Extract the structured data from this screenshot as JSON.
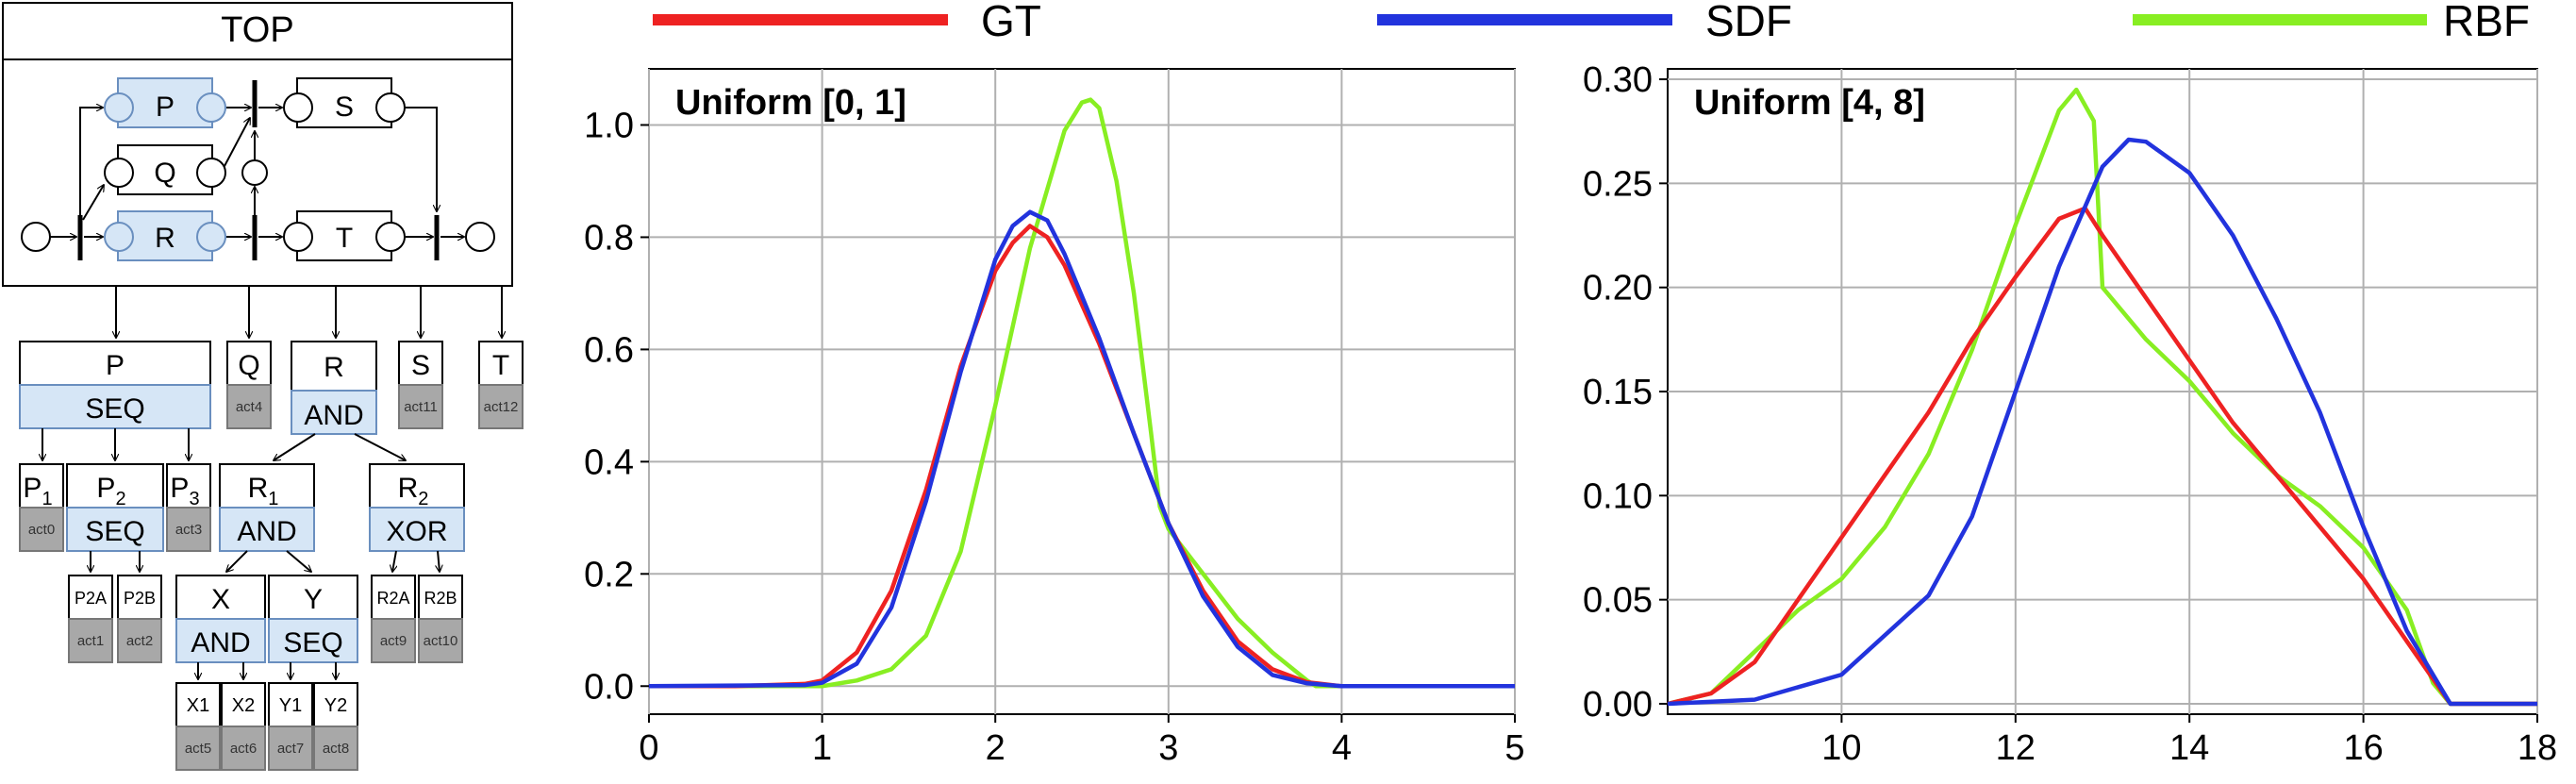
{
  "diagram": {
    "top_title": "TOP",
    "top_boxes": {
      "P": "P",
      "Q": "Q",
      "R": "R",
      "S": "S",
      "T": "T"
    },
    "tree": {
      "P": {
        "label": "P",
        "op": "SEQ"
      },
      "Q": {
        "label": "Q",
        "act": "act4"
      },
      "R": {
        "label": "R",
        "op": "AND"
      },
      "S": {
        "label": "S",
        "act": "act11"
      },
      "T": {
        "label": "T",
        "act": "act12"
      },
      "P1": {
        "base": "P",
        "sub": "1",
        "act": "act0"
      },
      "P2": {
        "base": "P",
        "sub": "2",
        "op": "SEQ"
      },
      "P3": {
        "base": "P",
        "sub": "3",
        "act": "act3"
      },
      "R1": {
        "base": "R",
        "sub": "1",
        "op": "AND"
      },
      "R2": {
        "base": "R",
        "sub": "2",
        "op": "XOR"
      },
      "P2A": {
        "label": "P2A",
        "act": "act1"
      },
      "P2B": {
        "label": "P2B",
        "act": "act2"
      },
      "X": {
        "label": "X",
        "op": "AND"
      },
      "Y": {
        "label": "Y",
        "op": "SEQ"
      },
      "R2A": {
        "label": "R2A",
        "act": "act9"
      },
      "R2B": {
        "label": "R2B",
        "act": "act10"
      },
      "X1": {
        "label": "X1",
        "act": "act5"
      },
      "X2": {
        "label": "X2",
        "act": "act6"
      },
      "Y1": {
        "label": "Y1",
        "act": "act7"
      },
      "Y2": {
        "label": "Y2",
        "act": "act8"
      }
    }
  },
  "legend": [
    {
      "name": "GT",
      "color": "#ee2222"
    },
    {
      "name": "SDF",
      "color": "#2233dd"
    },
    {
      "name": "RBF",
      "color": "#88ee22"
    }
  ],
  "chart_data": [
    {
      "type": "line",
      "title": "Uniform [0, 1]",
      "xlim": [
        0,
        5
      ],
      "ylim": [
        -0.05,
        1.1
      ],
      "xticks": [
        0,
        1,
        2,
        3,
        4,
        5
      ],
      "yticks": [
        0.0,
        0.2,
        0.4,
        0.6,
        0.8,
        1.0
      ],
      "xtick_labels": [
        "0",
        "1",
        "2",
        "3",
        "4",
        "5"
      ],
      "ytick_labels": [
        "0.0",
        "0.2",
        "0.4",
        "0.6",
        "0.8",
        "1.0"
      ],
      "grid": true,
      "series": [
        {
          "name": "GT",
          "x": [
            0,
            0.5,
            0.9,
            1.0,
            1.2,
            1.4,
            1.6,
            1.8,
            2.0,
            2.1,
            2.2,
            2.3,
            2.4,
            2.6,
            2.8,
            3.0,
            3.2,
            3.4,
            3.6,
            3.8,
            4.0,
            5.0
          ],
          "y": [
            0,
            0,
            0.004,
            0.01,
            0.06,
            0.17,
            0.35,
            0.57,
            0.74,
            0.79,
            0.82,
            0.8,
            0.75,
            0.61,
            0.45,
            0.29,
            0.17,
            0.08,
            0.03,
            0.007,
            0,
            0
          ]
        },
        {
          "name": "SDF",
          "x": [
            0,
            0.9,
            1.0,
            1.2,
            1.4,
            1.6,
            1.8,
            2.0,
            2.1,
            2.2,
            2.3,
            2.4,
            2.6,
            2.8,
            3.0,
            3.2,
            3.4,
            3.6,
            3.8,
            4.0,
            5.0
          ],
          "y": [
            0,
            0.002,
            0.006,
            0.04,
            0.14,
            0.33,
            0.56,
            0.76,
            0.82,
            0.845,
            0.83,
            0.77,
            0.62,
            0.45,
            0.29,
            0.16,
            0.07,
            0.02,
            0.005,
            0,
            0
          ]
        },
        {
          "name": "RBF",
          "x": [
            0,
            1.0,
            1.2,
            1.4,
            1.6,
            1.8,
            2.0,
            2.2,
            2.4,
            2.5,
            2.55,
            2.6,
            2.7,
            2.8,
            2.9,
            2.95,
            3.0,
            3.2,
            3.4,
            3.6,
            3.8,
            3.85,
            5.0
          ],
          "y": [
            0,
            0,
            0.01,
            0.03,
            0.09,
            0.24,
            0.5,
            0.78,
            0.99,
            1.04,
            1.045,
            1.03,
            0.9,
            0.7,
            0.45,
            0.32,
            0.28,
            0.2,
            0.12,
            0.06,
            0.01,
            0,
            0
          ]
        }
      ]
    },
    {
      "type": "line",
      "title": "Uniform [4, 8]",
      "xlim": [
        8,
        18
      ],
      "ylim": [
        -0.005,
        0.305
      ],
      "xticks": [
        10,
        12,
        14,
        16,
        18
      ],
      "yticks": [
        0.0,
        0.05,
        0.1,
        0.15,
        0.2,
        0.25,
        0.3
      ],
      "xtick_labels": [
        "10",
        "12",
        "14",
        "16",
        "18"
      ],
      "ytick_labels": [
        "0.00",
        "0.05",
        "0.10",
        "0.15",
        "0.20",
        "0.25",
        "0.30"
      ],
      "grid": true,
      "series": [
        {
          "name": "GT",
          "x": [
            8,
            8.5,
            9.0,
            9.5,
            10.0,
            10.5,
            11.0,
            11.5,
            12.0,
            12.5,
            12.8,
            13.0,
            13.5,
            14.0,
            14.5,
            15.0,
            15.5,
            16.0,
            16.5,
            17.0,
            18
          ],
          "y": [
            0,
            0.005,
            0.02,
            0.05,
            0.08,
            0.11,
            0.14,
            0.175,
            0.205,
            0.233,
            0.238,
            0.225,
            0.195,
            0.165,
            0.135,
            0.11,
            0.085,
            0.06,
            0.03,
            0,
            0
          ]
        },
        {
          "name": "SDF",
          "x": [
            8,
            9.0,
            10.0,
            11.0,
            11.5,
            12.0,
            12.5,
            13.0,
            13.3,
            13.5,
            14.0,
            14.5,
            15.0,
            15.5,
            16.0,
            16.5,
            17.0,
            18
          ],
          "y": [
            0,
            0.002,
            0.014,
            0.052,
            0.09,
            0.15,
            0.21,
            0.258,
            0.271,
            0.27,
            0.255,
            0.225,
            0.185,
            0.14,
            0.085,
            0.035,
            0,
            0
          ]
        },
        {
          "name": "RBF",
          "x": [
            8,
            8.5,
            9.0,
            9.5,
            10.0,
            10.5,
            11.0,
            11.5,
            12.0,
            12.5,
            12.7,
            12.9,
            13.0,
            13.5,
            14.0,
            14.5,
            15.0,
            15.5,
            16.0,
            16.5,
            16.8,
            17.0,
            18
          ],
          "y": [
            0,
            0.005,
            0.025,
            0.045,
            0.06,
            0.085,
            0.12,
            0.17,
            0.23,
            0.285,
            0.295,
            0.28,
            0.2,
            0.175,
            0.155,
            0.13,
            0.11,
            0.095,
            0.075,
            0.045,
            0.01,
            0,
            0
          ]
        }
      ]
    }
  ]
}
